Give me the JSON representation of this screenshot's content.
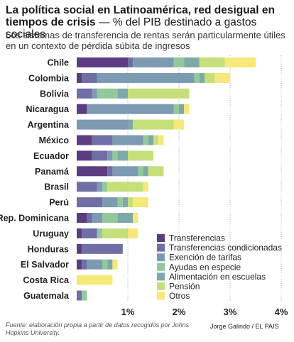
{
  "header": {
    "title_bold": "La política social en Latinoamérica, red desigual en tiempos de crisis",
    "title_rest": " — % del PIB destinado a gastos sociales",
    "subtitle": "Los sistemas de transferencia de rentas serán particularmente útiles en un contexto de pérdida súbita de ingresos"
  },
  "footer": {
    "source": "Fuente: elaboración propia a partir de datos recogidos por Johns Hopkins University.",
    "credit": "Jorge Galindo / EL PAIS"
  },
  "chart_data": {
    "type": "bar",
    "orientation": "horizontal",
    "stacked": true,
    "categories": [
      "Chile",
      "Colombia",
      "Bolivia",
      "Nicaragua",
      "Argentina",
      "México",
      "Ecuador",
      "Panamá",
      "Brasil",
      "Perú",
      "Rep. Dominicana",
      "Uruguay",
      "Honduras",
      "El Salvador",
      "Costa Rica",
      "Guatemala"
    ],
    "series": [
      {
        "name": "Transferencias",
        "color": "#5c3d82",
        "values": [
          1.0,
          0.1,
          0.0,
          0.2,
          0.0,
          0.3,
          0.3,
          0.6,
          0.0,
          0.0,
          0.2,
          0.1,
          0.1,
          0.1,
          0.0,
          0.0
        ]
      },
      {
        "name": "Transferencias condicionadas",
        "color": "#6f6fa5",
        "values": [
          0.1,
          0.3,
          0.3,
          0.0,
          0.0,
          0.4,
          0.3,
          0.1,
          0.4,
          0.5,
          0.1,
          0.3,
          0.8,
          0.1,
          0.0,
          0.1
        ]
      },
      {
        "name": "Exención de tarifas",
        "color": "#7d9ab3",
        "values": [
          0.8,
          1.9,
          0.1,
          1.7,
          1.0,
          0.6,
          0.1,
          0.5,
          0.1,
          0.3,
          0.2,
          0.0,
          0.0,
          0.3,
          0.0,
          0.0
        ]
      },
      {
        "name": "Ayudas en especie",
        "color": "#92c99a",
        "values": [
          0.2,
          0.1,
          0.4,
          0.1,
          0.0,
          0.1,
          0.1,
          0.1,
          0.1,
          0.1,
          0.3,
          0.1,
          0.0,
          0.1,
          0.0,
          0.1
        ]
      },
      {
        "name": "Alimentación en escuelas",
        "color": "#7fa8a8",
        "values": [
          0.3,
          0.1,
          0.2,
          0.1,
          0.1,
          0.1,
          0.2,
          0.1,
          0.0,
          0.1,
          0.3,
          0.0,
          0.0,
          0.1,
          0.0,
          0.0
        ]
      },
      {
        "name": "Pensión",
        "color": "#c5e07a",
        "values": [
          0.5,
          0.2,
          1.2,
          0.0,
          0.8,
          0.1,
          0.5,
          0.3,
          0.7,
          0.1,
          0.0,
          0.5,
          0.0,
          0.0,
          0.0,
          0.0
        ]
      },
      {
        "name": "Otros",
        "color": "#f7e87a",
        "values": [
          0.6,
          0.3,
          0.0,
          0.1,
          0.2,
          0.1,
          0.0,
          0.0,
          0.1,
          0.3,
          0.1,
          0.2,
          0.0,
          0.1,
          0.7,
          0.0
        ]
      }
    ],
    "xlim": [
      0,
      4
    ],
    "xticks": [
      1,
      2,
      3,
      4
    ],
    "xtick_labels": [
      "1%",
      "2%",
      "3%",
      "4%"
    ],
    "grid": "vertical dotted",
    "legend_position": "bottom-right"
  }
}
